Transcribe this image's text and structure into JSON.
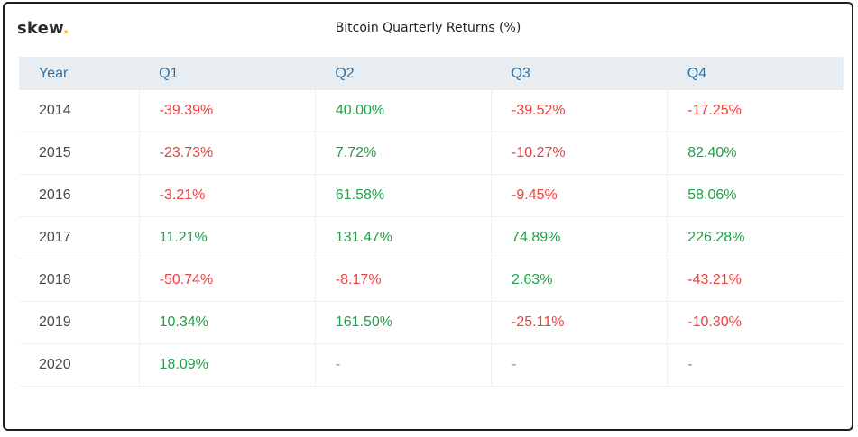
{
  "brand": {
    "name": "skew",
    "dot": ".",
    "dot_color": "#f5a623"
  },
  "title": "Bitcoin Quarterly Returns (%)",
  "colors": {
    "positive": "#1fa04a",
    "negative": "#e8423f",
    "header": "#2a72a8"
  },
  "chart_data": {
    "type": "table",
    "title": "Bitcoin Quarterly Returns (%)",
    "columns": [
      "Year",
      "Q1",
      "Q2",
      "Q3",
      "Q4"
    ],
    "rows": [
      {
        "year": "2014",
        "cells": [
          "-39.39%",
          "40.00%",
          "-39.52%",
          "-17.25%"
        ]
      },
      {
        "year": "2015",
        "cells": [
          "-23.73%",
          "7.72%",
          "-10.27%",
          "82.40%"
        ]
      },
      {
        "year": "2016",
        "cells": [
          "-3.21%",
          "61.58%",
          "-9.45%",
          "58.06%"
        ]
      },
      {
        "year": "2017",
        "cells": [
          "11.21%",
          "131.47%",
          "74.89%",
          "226.28%"
        ]
      },
      {
        "year": "2018",
        "cells": [
          "-50.74%",
          "-8.17%",
          "2.63%",
          "-43.21%"
        ]
      },
      {
        "year": "2019",
        "cells": [
          "10.34%",
          "161.50%",
          "-25.11%",
          "-10.30%"
        ]
      },
      {
        "year": "2020",
        "cells": [
          "18.09%",
          "-",
          "-",
          "-"
        ]
      }
    ]
  }
}
